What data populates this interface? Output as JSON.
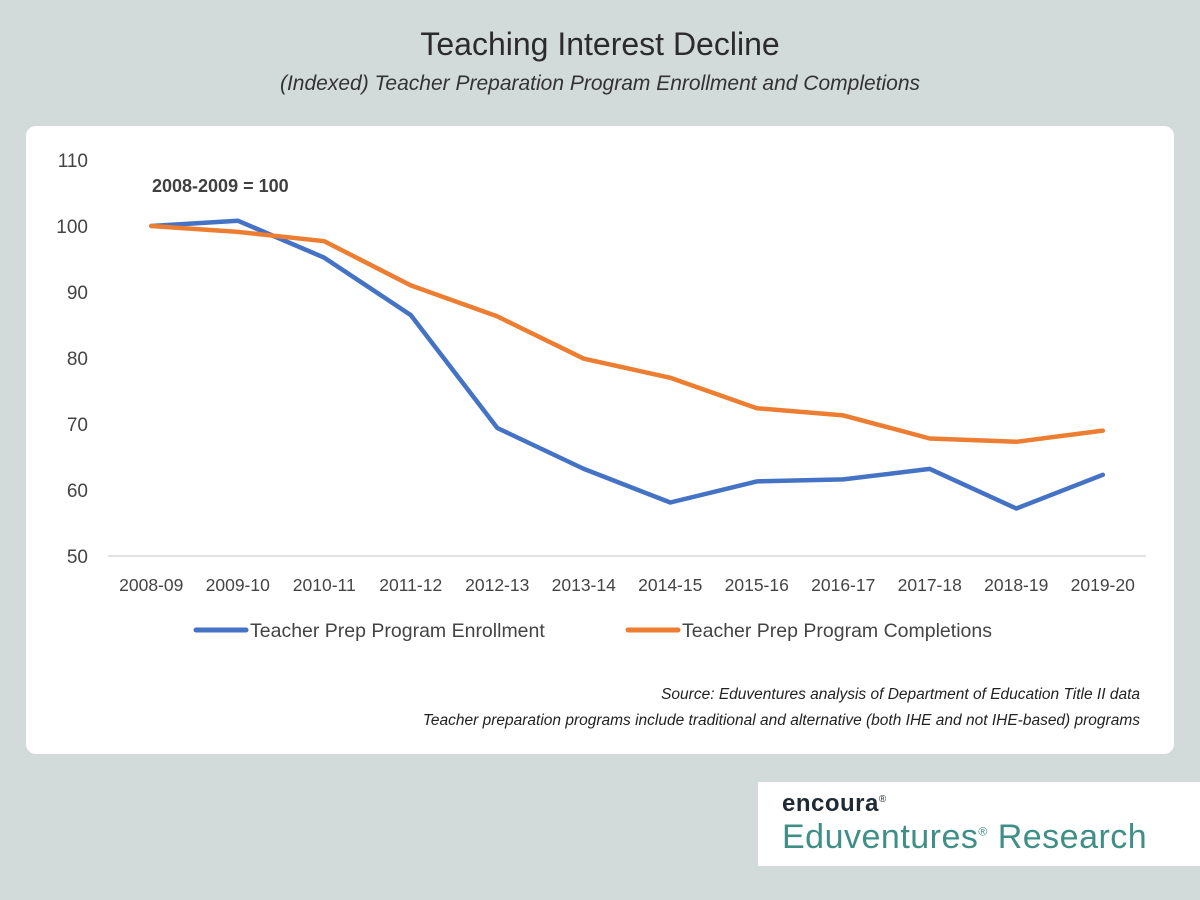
{
  "chart_data": {
    "type": "line",
    "title": "Teaching Interest Decline",
    "subtitle": "(Indexed) Teacher Preparation Program Enrollment and Completions",
    "annotation": "2008-2009 = 100",
    "categories": [
      "2008-09",
      "2009-10",
      "2010-11",
      "2011-12",
      "2012-13",
      "2013-14",
      "2014-15",
      "2015-16",
      "2016-17",
      "2017-18",
      "2018-19",
      "2019-20"
    ],
    "ylim": [
      50,
      110
    ],
    "yticks": [
      50,
      60,
      70,
      80,
      90,
      100,
      110
    ],
    "grid": false,
    "legend_position": "bottom",
    "series": [
      {
        "name": "Teacher Prep Program Enrollment",
        "color": "#4472c4",
        "values": [
          100,
          100.8,
          95.2,
          86.5,
          69.4,
          63.2,
          58.1,
          61.3,
          61.6,
          63.2,
          57.2,
          62.3
        ]
      },
      {
        "name": "Teacher Prep Program Completions",
        "color": "#ed7d31",
        "values": [
          100,
          99.1,
          97.7,
          91.0,
          86.3,
          79.9,
          77.0,
          72.4,
          71.3,
          67.8,
          67.3,
          69.0
        ]
      }
    ]
  },
  "source": {
    "line1": "Source: Eduventures analysis of Department of Education Title II data",
    "line2": "Teacher preparation programs include traditional and alternative (both IHE and not IHE-based) programs"
  },
  "logo": {
    "brand": "encoura",
    "product": "Eduventures",
    "suffix": "Research",
    "reg_mark": "®"
  }
}
